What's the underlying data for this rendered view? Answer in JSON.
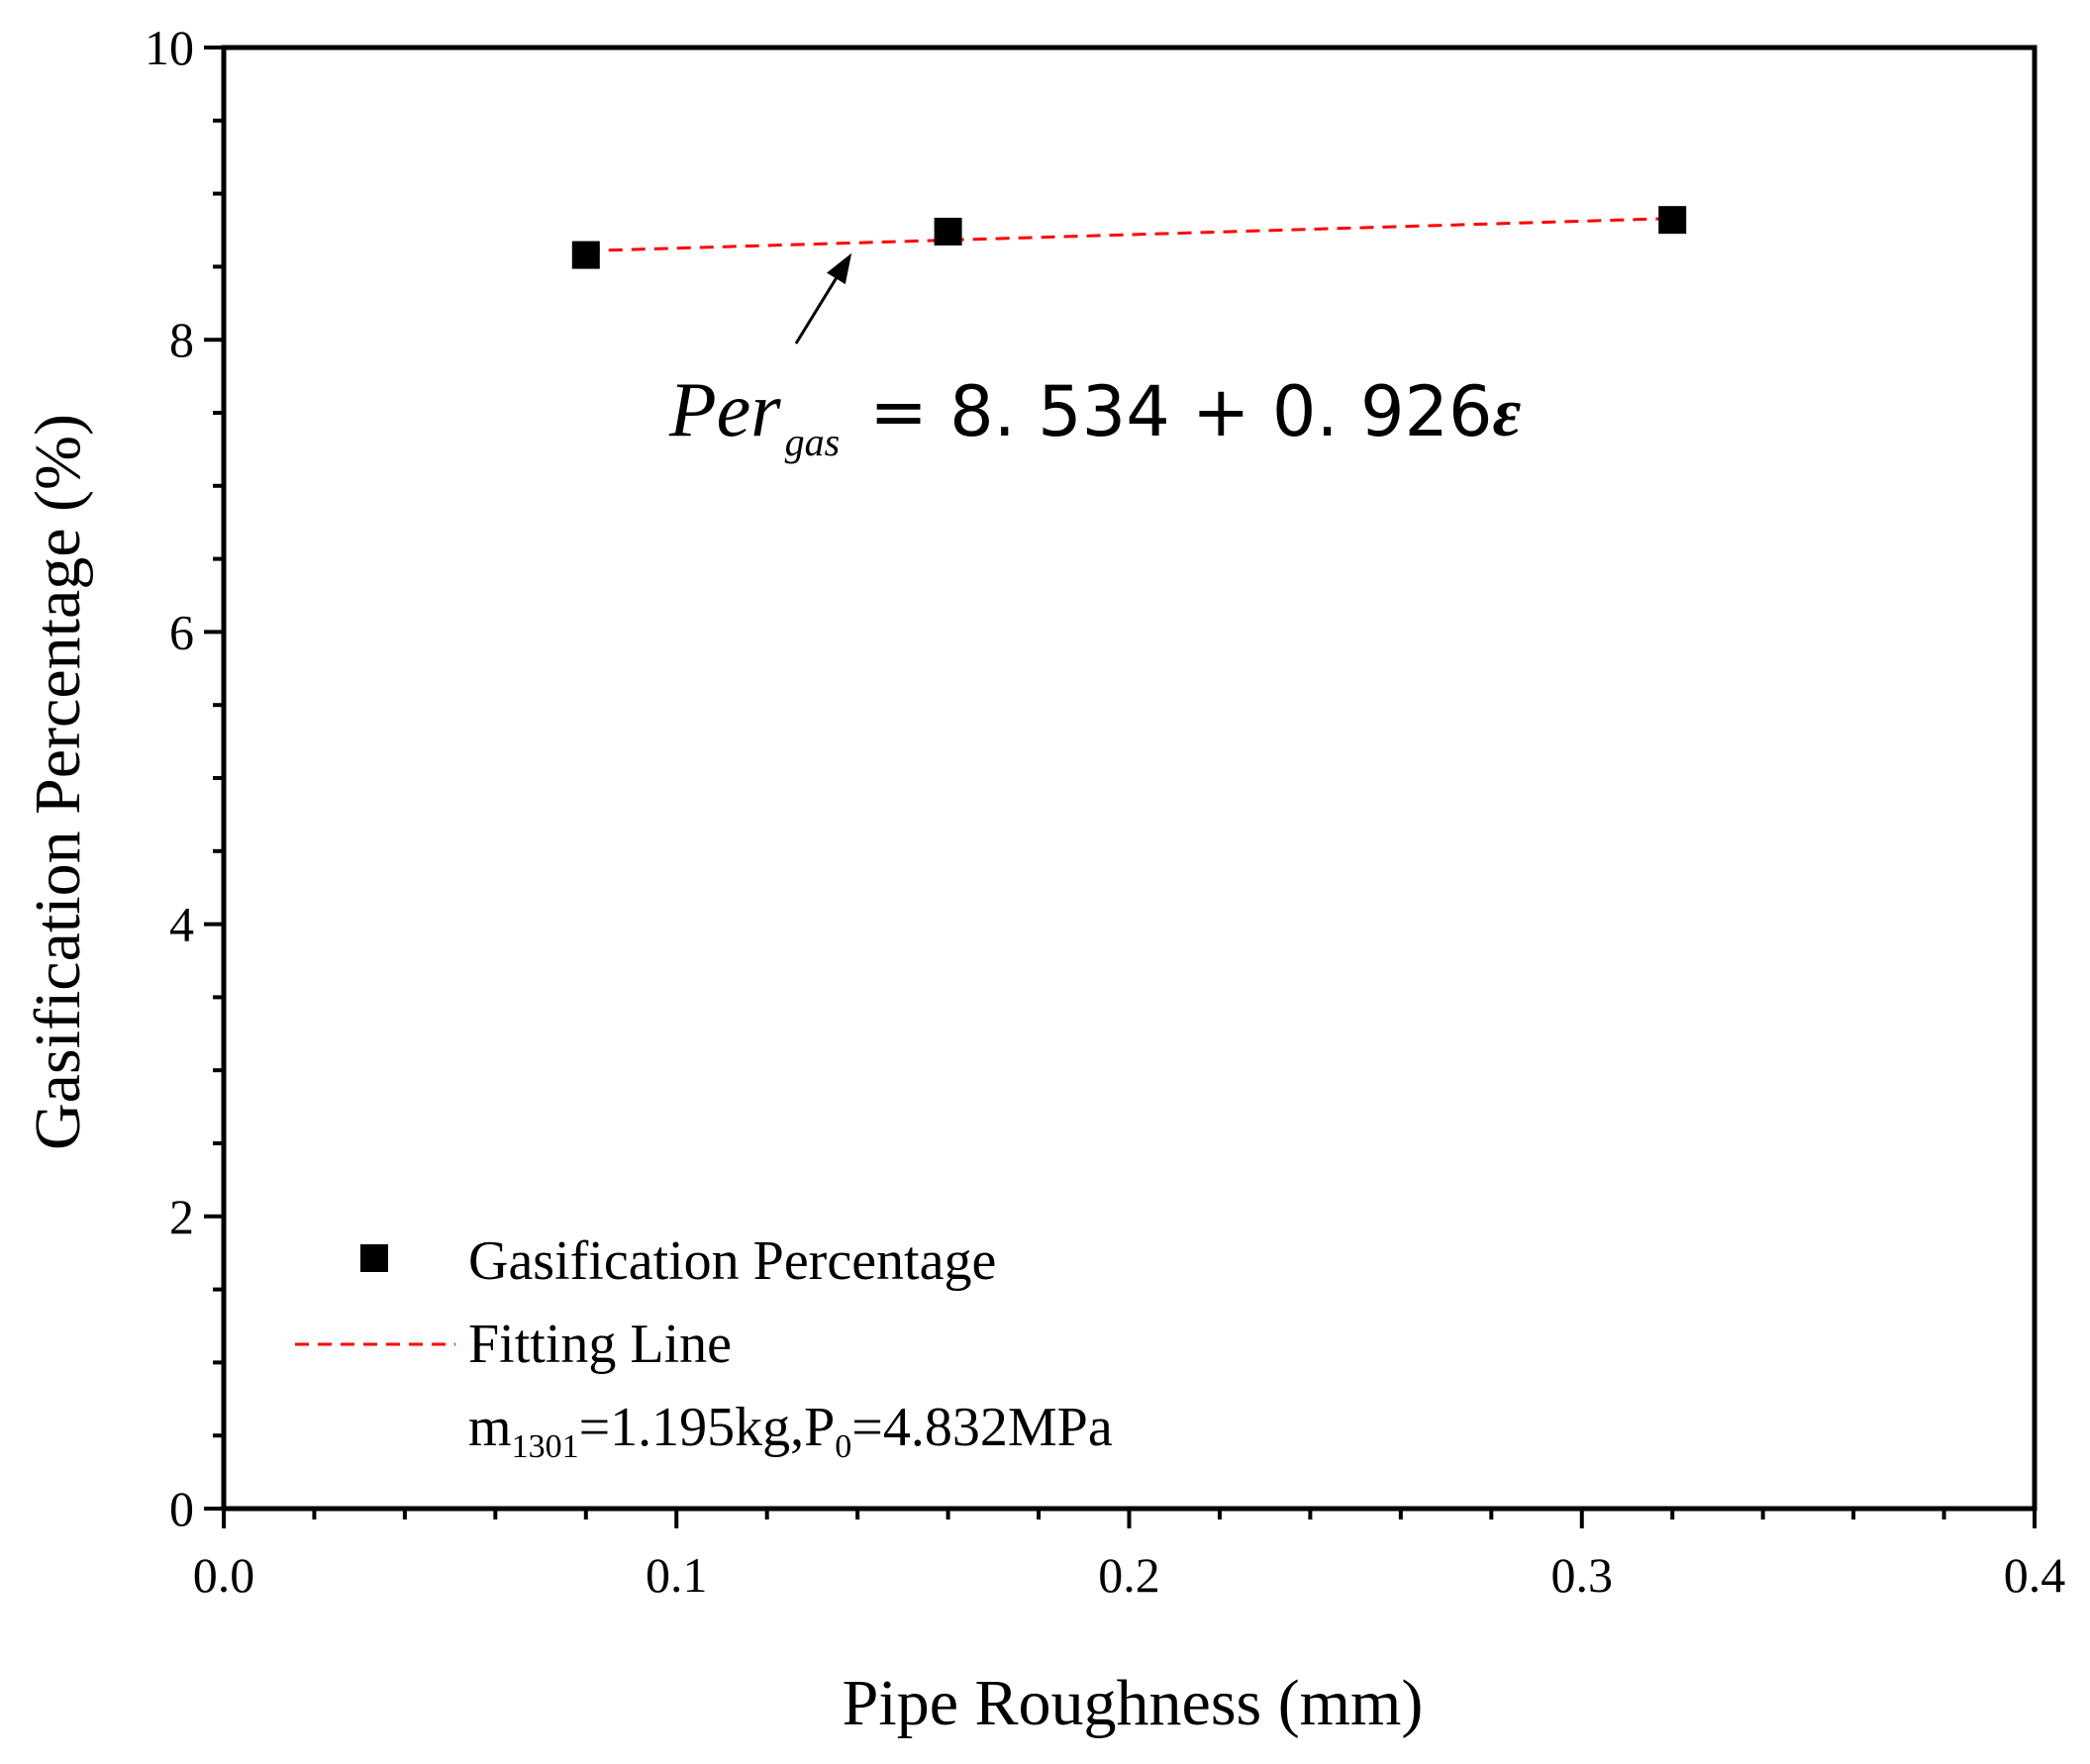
{
  "chart_data": {
    "type": "scatter",
    "title": "",
    "xlabel": "Pipe Roughness (mm)",
    "ylabel": "Gasification Percentage (%)",
    "xlim": [
      0.0,
      0.4
    ],
    "ylim": [
      0,
      10
    ],
    "x_major_ticks": [
      0.0,
      0.1,
      0.2,
      0.3,
      0.4
    ],
    "x_tick_labels": [
      "0.0",
      "0.1",
      "0.2",
      "0.3",
      "0.4"
    ],
    "y_major_ticks": [
      0,
      2,
      4,
      6,
      8,
      10
    ],
    "y_tick_labels": [
      "0",
      "2",
      "4",
      "6",
      "8",
      "10"
    ],
    "grid": false,
    "series": [
      {
        "name": "Gasification Percentage",
        "kind": "scatter",
        "marker": "square",
        "color": "#000000",
        "x": [
          0.08,
          0.16,
          0.32
        ],
        "y": [
          8.58,
          8.74,
          8.82
        ]
      },
      {
        "name": "Fitting Line",
        "kind": "line",
        "style": "dashed",
        "color": "#ff0000",
        "intercept": 8.534,
        "slope": 0.926,
        "x": [
          0.08,
          0.32
        ]
      }
    ],
    "annotation": {
      "lhs": "Per",
      "subscript": "gas",
      "rhs": "= 8. 534 + 0. 926",
      "symbol": "ε",
      "arrow_target": [
        0.14,
        8.66
      ]
    },
    "legend": {
      "position": "bottom-left",
      "items": [
        "Gasification Percentage",
        "Fitting Line"
      ],
      "note_m": "m",
      "note_m_sub": "1301",
      "note_mid": "=1.195kg,P",
      "note_p_sub": "0",
      "note_end": "=4.832MPa"
    }
  }
}
